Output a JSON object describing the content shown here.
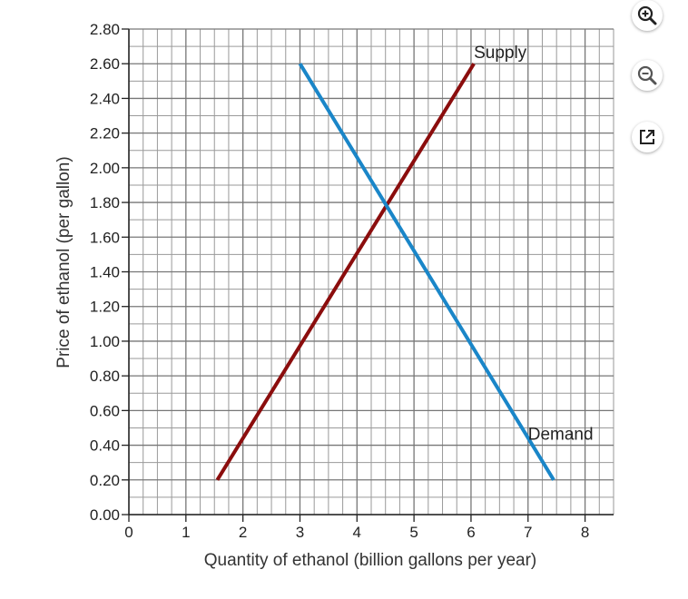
{
  "toolbar": {
    "zoom_in": "zoom-in-icon",
    "zoom_out": "zoom-out-icon",
    "popout": "external-link-icon"
  },
  "chart_data": {
    "type": "line",
    "xlabel": "Quantity of ethanol (billion gallons per year)",
    "ylabel": "Price of ethanol (per gallon)",
    "xlim": [
      0,
      8.5
    ],
    "ylim": [
      0,
      2.8
    ],
    "x_minor_step": 0.25,
    "y_minor_step": 0.1,
    "x_ticks": [
      "0",
      "1",
      "2",
      "3",
      "4",
      "5",
      "6",
      "7",
      "8"
    ],
    "y_ticks": [
      "0.00",
      "0.20",
      "0.40",
      "0.60",
      "0.80",
      "1.00",
      "1.20",
      "1.40",
      "1.60",
      "1.80",
      "2.00",
      "2.20",
      "2.40",
      "2.60",
      "2.80"
    ],
    "grid": true,
    "series": [
      {
        "name": "Supply",
        "color": "#8b0d0d",
        "points": [
          [
            1.55,
            0.2
          ],
          [
            6.05,
            2.6
          ]
        ]
      },
      {
        "name": "Demand",
        "color": "#1a86c8",
        "points": [
          [
            3.0,
            2.6
          ],
          [
            7.45,
            0.2
          ]
        ]
      }
    ],
    "curve_labels": [
      {
        "text": "Supply",
        "x": 6.05,
        "y": 2.6
      },
      {
        "text": "Demand",
        "x": 7.0,
        "y": 0.4
      }
    ]
  }
}
